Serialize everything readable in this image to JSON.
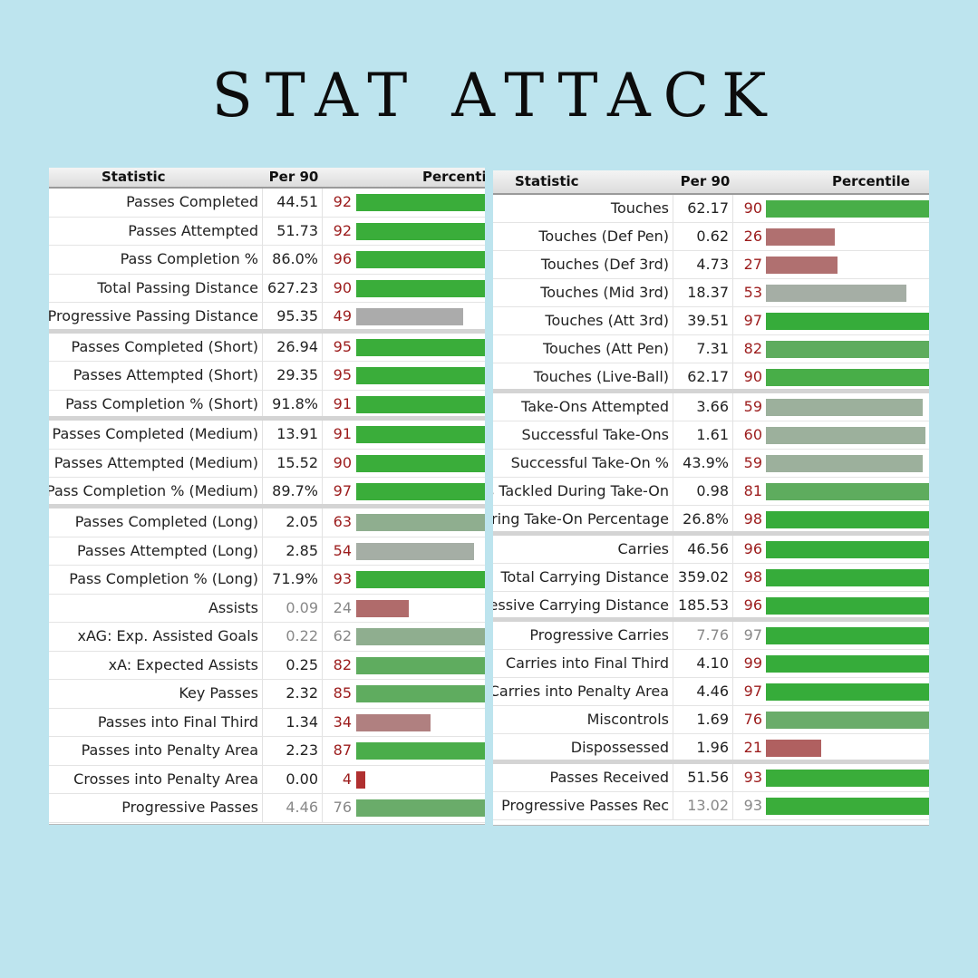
{
  "title": "STAT ATTACK",
  "colors": {
    "background": "#bde4ee",
    "high_green": "#36ac3a",
    "mid_green": "#5eac5e",
    "gray_green": "#8fae8f",
    "gray": "#a9a9a9",
    "low_red": "#b06a6a",
    "very_low_red": "#b03030"
  },
  "left_table": {
    "headers": {
      "statistic": "Statistic",
      "per90": "Per 90",
      "percentile": "Percentile"
    },
    "rows": [
      {
        "stat": "Passes Completed",
        "per90": "44.51",
        "pct": "92",
        "pct_value": 92,
        "color": "#3aad3a"
      },
      {
        "stat": "Passes Attempted",
        "per90": "51.73",
        "pct": "92",
        "pct_value": 92,
        "color": "#3aad3a"
      },
      {
        "stat": "Pass Completion %",
        "per90": "86.0%",
        "pct": "96",
        "pct_value": 96,
        "color": "#3aad3a"
      },
      {
        "stat": "Total Passing Distance",
        "per90": "627.23",
        "pct": "90",
        "pct_value": 90,
        "color": "#3aad3a"
      },
      {
        "stat": "Progressive Passing Distance",
        "per90": "95.35",
        "pct": "49",
        "pct_value": 49,
        "color": "#ababab",
        "group_end": true
      },
      {
        "stat": "Passes Completed (Short)",
        "per90": "26.94",
        "pct": "95",
        "pct_value": 95,
        "color": "#3aad3a"
      },
      {
        "stat": "Passes Attempted (Short)",
        "per90": "29.35",
        "pct": "95",
        "pct_value": 95,
        "color": "#3aad3a"
      },
      {
        "stat": "Pass Completion % (Short)",
        "per90": "91.8%",
        "pct": "91",
        "pct_value": 91,
        "color": "#3aad3a",
        "group_end": true
      },
      {
        "stat": "Passes Completed (Medium)",
        "per90": "13.91",
        "pct": "91",
        "pct_value": 91,
        "color": "#3aad3a"
      },
      {
        "stat": "Passes Attempted (Medium)",
        "per90": "15.52",
        "pct": "90",
        "pct_value": 90,
        "color": "#3aad3a"
      },
      {
        "stat": "Pass Completion % (Medium)",
        "per90": "89.7%",
        "pct": "97",
        "pct_value": 97,
        "color": "#3aad3a",
        "group_end": true
      },
      {
        "stat": "Passes Completed (Long)",
        "per90": "2.05",
        "pct": "63",
        "pct_value": 63,
        "color": "#8fae8f"
      },
      {
        "stat": "Passes Attempted (Long)",
        "per90": "2.85",
        "pct": "54",
        "pct_value": 54,
        "color": "#a5aea5"
      },
      {
        "stat": "Pass Completion % (Long)",
        "per90": "71.9%",
        "pct": "93",
        "pct_value": 93,
        "color": "#3aad3a"
      },
      {
        "stat": "Assists",
        "per90": "0.09",
        "pct": "24",
        "pct_value": 24,
        "color": "#b06b6b",
        "dim": true
      },
      {
        "stat": "xAG: Exp. Assisted Goals",
        "per90": "0.22",
        "pct": "62",
        "pct_value": 62,
        "color": "#8fae8f",
        "dim": true
      },
      {
        "stat": "xA: Expected Assists",
        "per90": "0.25",
        "pct": "82",
        "pct_value": 82,
        "color": "#5fac5f"
      },
      {
        "stat": "Key Passes",
        "per90": "2.32",
        "pct": "85",
        "pct_value": 85,
        "color": "#5fac5f"
      },
      {
        "stat": "Passes into Final Third",
        "per90": "1.34",
        "pct": "34",
        "pct_value": 34,
        "color": "#b08080"
      },
      {
        "stat": "Passes into Penalty Area",
        "per90": "2.23",
        "pct": "87",
        "pct_value": 87,
        "color": "#4aad4a"
      },
      {
        "stat": "Crosses into Penalty Area",
        "per90": "0.00",
        "pct": "4",
        "pct_value": 4,
        "color": "#b03030"
      },
      {
        "stat": "Progressive Passes",
        "per90": "4.46",
        "pct": "76",
        "pct_value": 76,
        "color": "#6aac6a",
        "dim": true
      }
    ]
  },
  "right_table": {
    "headers": {
      "statistic": "Statistic",
      "per90": "Per 90",
      "percentile": "Percentile"
    },
    "rows": [
      {
        "stat": "Touches",
        "per90": "62.17",
        "pct": "90",
        "pct_value": 90,
        "color": "#48ae48"
      },
      {
        "stat": "Touches (Def Pen)",
        "per90": "0.62",
        "pct": "26",
        "pct_value": 26,
        "color": "#b07070"
      },
      {
        "stat": "Touches (Def 3rd)",
        "per90": "4.73",
        "pct": "27",
        "pct_value": 27,
        "color": "#b07070"
      },
      {
        "stat": "Touches (Mid 3rd)",
        "per90": "18.37",
        "pct": "53",
        "pct_value": 53,
        "color": "#a5aea5"
      },
      {
        "stat": "Touches (Att 3rd)",
        "per90": "39.51",
        "pct": "97",
        "pct_value": 97,
        "color": "#36ac3a"
      },
      {
        "stat": "Touches (Att Pen)",
        "per90": "7.31",
        "pct": "82",
        "pct_value": 82,
        "color": "#5eac5e"
      },
      {
        "stat": "Touches (Live-Ball)",
        "per90": "62.17",
        "pct": "90",
        "pct_value": 90,
        "color": "#48ae48",
        "group_end": true
      },
      {
        "stat": "Take-Ons Attempted",
        "per90": "3.66",
        "pct": "59",
        "pct_value": 59,
        "color": "#9cb09c"
      },
      {
        "stat": "Successful Take-Ons",
        "per90": "1.61",
        "pct": "60",
        "pct_value": 60,
        "color": "#9cb09c"
      },
      {
        "stat": "Successful Take-On %",
        "per90": "43.9%",
        "pct": "59",
        "pct_value": 59,
        "color": "#9cb09c"
      },
      {
        "stat": "Times Tackled During Take-On",
        "per90": "0.98",
        "pct": "81",
        "pct_value": 81,
        "color": "#5eac5e"
      },
      {
        "stat": "Tackled During Take-On Percentage",
        "per90": "26.8%",
        "pct": "98",
        "pct_value": 98,
        "color": "#36ac3a",
        "group_end": true
      },
      {
        "stat": "Carries",
        "per90": "46.56",
        "pct": "96",
        "pct_value": 96,
        "color": "#36ac3a"
      },
      {
        "stat": "Total Carrying Distance",
        "per90": "359.02",
        "pct": "98",
        "pct_value": 98,
        "color": "#36ac3a"
      },
      {
        "stat": "Progressive Carrying Distance",
        "per90": "185.53",
        "pct": "96",
        "pct_value": 96,
        "color": "#36ac3a",
        "group_end": true
      },
      {
        "stat": "Progressive Carries",
        "per90": "7.76",
        "pct": "97",
        "pct_value": 97,
        "color": "#36ac3a",
        "dim": true
      },
      {
        "stat": "Carries into Final Third",
        "per90": "4.10",
        "pct": "99",
        "pct_value": 99,
        "color": "#36ac3a"
      },
      {
        "stat": "Carries into Penalty Area",
        "per90": "4.46",
        "pct": "97",
        "pct_value": 97,
        "color": "#36ac3a"
      },
      {
        "stat": "Miscontrols",
        "per90": "1.69",
        "pct": "76",
        "pct_value": 76,
        "color": "#6aac6a"
      },
      {
        "stat": "Dispossessed",
        "per90": "1.96",
        "pct": "21",
        "pct_value": 21,
        "color": "#b06060",
        "group_end": true
      },
      {
        "stat": "Passes Received",
        "per90": "51.56",
        "pct": "93",
        "pct_value": 93,
        "color": "#3aad3a"
      },
      {
        "stat": "Progressive Passes Rec",
        "per90": "13.02",
        "pct": "93",
        "pct_value": 93,
        "color": "#3aad3a",
        "dim": true
      }
    ]
  }
}
